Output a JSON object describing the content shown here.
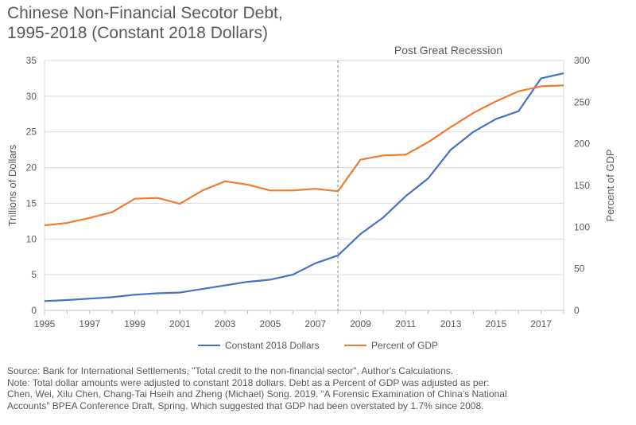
{
  "title_lines": [
    "Chinese Non-Financial Secotor Debt,",
    "1995-2018 (Constant 2018 Dollars)"
  ],
  "footnote_lines": [
    "Source: Bank for International Settlements, \"Total credit to the non-financial sector\", Author's Calculations.",
    "Note: Total dollar amounts were adjusted to constant 2018 dollars. Debt as a Percent of GDP was adjusted as per:",
    "Chen, Wei, Xilu Chen, Chang-Tai Hseih and Zheng (Michael) Song. 2019. “A Forensic Examination of China’s National",
    "Accounts” BPEA Conference Draft, Spring. Which suggested that GDP had been overstated by 1.7% since 2008."
  ],
  "chart_data": {
    "type": "line",
    "x": [
      1995,
      1996,
      1997,
      1998,
      1999,
      2000,
      2001,
      2002,
      2003,
      2004,
      2005,
      2006,
      2007,
      2008,
      2009,
      2010,
      2011,
      2012,
      2013,
      2014,
      2015,
      2016,
      2017,
      2018
    ],
    "xlim": [
      1995,
      2018
    ],
    "xticks": [
      "1995",
      "1997",
      "1999",
      "2001",
      "2003",
      "2005",
      "2007",
      "2009",
      "2011",
      "2013",
      "2015",
      "2017"
    ],
    "series": [
      {
        "name": "Constant 2018 Dollars",
        "axis": "left",
        "color": "#4472C4",
        "values": [
          1.3,
          1.45,
          1.65,
          1.85,
          2.2,
          2.4,
          2.5,
          3.0,
          3.5,
          4.0,
          4.3,
          5.0,
          6.6,
          7.7,
          10.7,
          13.0,
          16.0,
          18.5,
          22.5,
          25.0,
          26.8,
          27.9,
          32.5,
          33.2
        ]
      },
      {
        "name": "Percent of GDP",
        "axis": "right",
        "color": "#ED7D31",
        "values": [
          102,
          105,
          111,
          118,
          134,
          135,
          128,
          144,
          155,
          151,
          144,
          144,
          146,
          143,
          181,
          186,
          187,
          202,
          220,
          237,
          251,
          263,
          269,
          270
        ]
      }
    ],
    "ylabel_left": "Trillions of Dollars",
    "ylim_left": [
      0,
      35
    ],
    "yticks_left": [
      "0",
      "5",
      "10",
      "15",
      "20",
      "25",
      "30",
      "35"
    ],
    "ylabel_right": "Percent of GDP",
    "ylim_right": [
      0,
      300
    ],
    "yticks_right": [
      "0",
      "50",
      "100",
      "150",
      "200",
      "250",
      "300"
    ],
    "vline_x": 2008,
    "annotation": "Post Great Recession",
    "legend_position": "bottom",
    "grid": "horizontal"
  }
}
